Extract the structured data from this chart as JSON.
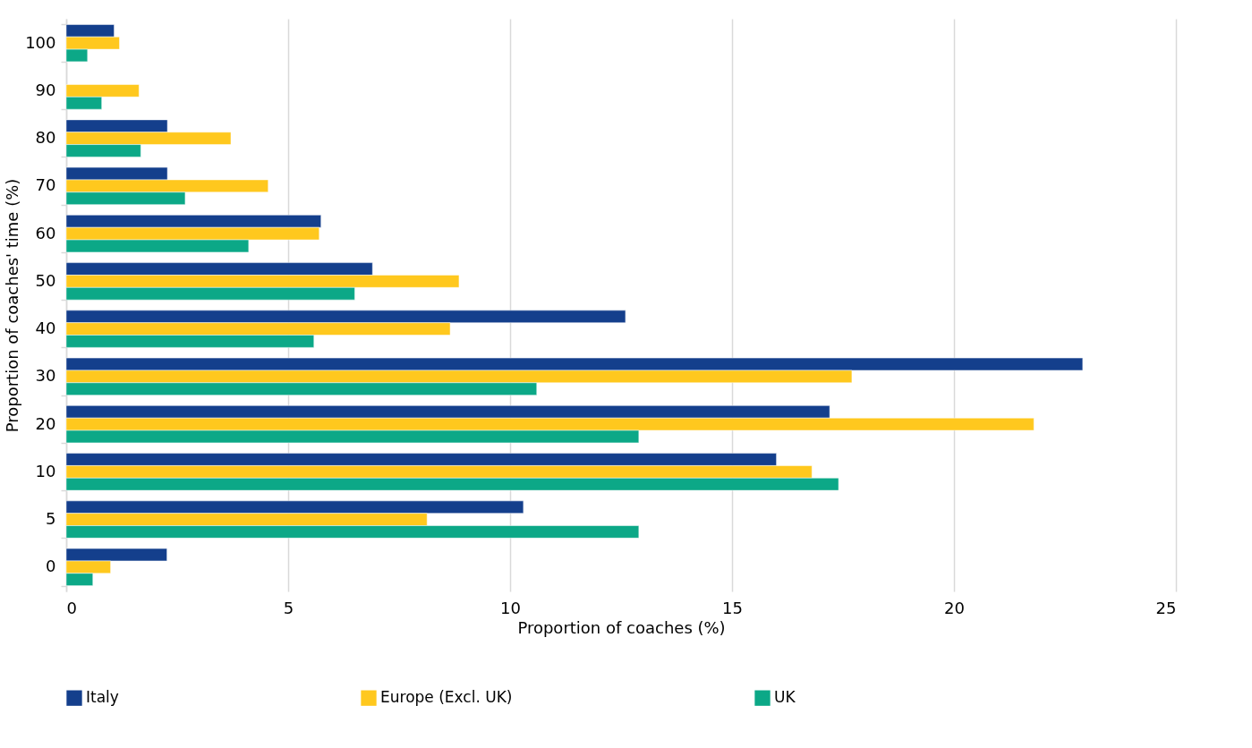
{
  "chart_data": {
    "type": "bar",
    "orientation": "horizontal",
    "xlabel": "Proportion of coaches (%)",
    "ylabel": "Proportion of coaches' time (%)",
    "categories": [
      "100",
      "90",
      "80",
      "70",
      "60",
      "50",
      "40",
      "30",
      "20",
      "10",
      "5",
      "0"
    ],
    "series": [
      {
        "name": "Italy",
        "color": "#143f8c",
        "values": [
          1.08,
          null,
          2.28,
          2.28,
          5.74,
          6.9,
          12.6,
          22.9,
          17.2,
          16.0,
          10.3,
          2.27
        ]
      },
      {
        "name": "Europe (Excl. UK)",
        "color": "#ffc81e",
        "values": [
          1.2,
          1.64,
          3.71,
          4.55,
          5.7,
          8.85,
          8.65,
          17.7,
          21.8,
          16.8,
          8.13,
          1.0
        ]
      },
      {
        "name": "UK",
        "color": "#0ca887",
        "values": [
          0.48,
          0.8,
          1.68,
          2.68,
          4.11,
          6.5,
          5.58,
          10.6,
          12.9,
          17.4,
          12.9,
          0.6
        ]
      }
    ],
    "xlim": [
      0,
      25
    ],
    "xticks": [
      0,
      5,
      10,
      15,
      20,
      25
    ],
    "grid": "x",
    "legend": "bottom"
  }
}
